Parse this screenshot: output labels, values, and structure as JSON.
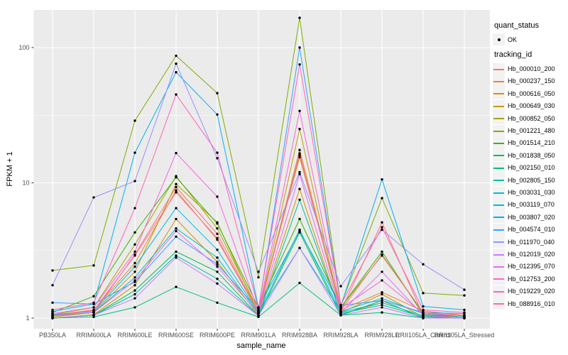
{
  "chart_data": {
    "type": "line",
    "title": "",
    "xlabel": "sample_name",
    "ylabel": "FPKM + 1",
    "y_scale": "log10",
    "y_breaks": [
      1,
      10,
      100
    ],
    "y_minor_breaks": [
      3.162,
      31.62
    ],
    "ylim_log": [
      0.92,
      200
    ],
    "grid": "on",
    "legend_position": "right",
    "categories": [
      "PB350LA",
      "RRIM600LA",
      "RRIM600LE",
      "RRIM600SE",
      "RRIM600PE",
      "RRIM901LA",
      "RRIM928BA",
      "RRIM928LA",
      "RRIM928LE",
      "RRII105LA_Control",
      "RRII105LA_Stressed"
    ],
    "series": [
      {
        "name": "Hb_000010_200",
        "color": "#F8766D",
        "values": [
          1.02,
          1.1,
          2.95,
          9.3,
          4.2,
          1.1,
          16.5,
          1.12,
          5.1,
          1.05,
          1.02
        ]
      },
      {
        "name": "Hb_000237_150",
        "color": "#EA8331",
        "values": [
          1.05,
          1.15,
          2.55,
          8.8,
          3.8,
          1.1,
          17.5,
          1.15,
          1.55,
          1.13,
          1.05
        ]
      },
      {
        "name": "Hb_000616_050",
        "color": "#D89000",
        "values": [
          1.0,
          1.06,
          1.75,
          5.4,
          2.6,
          1.05,
          9.0,
          1.06,
          1.3,
          1.04,
          1.0
        ]
      },
      {
        "name": "Hb_000649_030",
        "color": "#C09B00",
        "values": [
          1.02,
          1.1,
          2.2,
          9.8,
          5.1,
          1.08,
          25.0,
          1.1,
          1.5,
          1.02,
          1.0
        ]
      },
      {
        "name": "Hb_000852_050",
        "color": "#A3A500",
        "values": [
          1.06,
          1.2,
          3.5,
          11.2,
          4.6,
          1.14,
          15.5,
          1.2,
          2.9,
          1.1,
          1.04
        ]
      },
      {
        "name": "Hb_001221_480",
        "color": "#7CAE00",
        "values": [
          2.25,
          2.45,
          28.8,
          87.0,
          46.0,
          2.0,
          166.0,
          1.25,
          7.7,
          1.53,
          1.47
        ]
      },
      {
        "name": "Hb_001514_210",
        "color": "#39B600",
        "values": [
          1.1,
          1.45,
          4.3,
          11.0,
          5.0,
          1.2,
          5.4,
          1.2,
          3.1,
          1.06,
          1.02
        ]
      },
      {
        "name": "Hb_001838_050",
        "color": "#00BB4E",
        "values": [
          1.0,
          1.05,
          1.6,
          3.1,
          2.2,
          1.04,
          4.3,
          1.05,
          1.35,
          1.0,
          1.0
        ]
      },
      {
        "name": "Hb_002150_010",
        "color": "#00BF7D",
        "values": [
          1.0,
          1.02,
          1.2,
          1.7,
          1.3,
          1.02,
          1.82,
          1.05,
          1.1,
          1.0,
          1.0
        ]
      },
      {
        "name": "Hb_002805_150",
        "color": "#00C1A3",
        "values": [
          1.0,
          1.05,
          1.5,
          2.9,
          1.95,
          1.04,
          7.5,
          1.08,
          1.25,
          1.02,
          1.0
        ]
      },
      {
        "name": "Hb_003031_030",
        "color": "#00BFC4",
        "values": [
          1.04,
          1.1,
          2.0,
          4.6,
          2.8,
          1.08,
          4.5,
          1.1,
          1.3,
          1.04,
          1.0
        ]
      },
      {
        "name": "Hb_003119_070",
        "color": "#00BAE0",
        "values": [
          1.06,
          1.12,
          2.4,
          6.5,
          3.2,
          1.1,
          3.3,
          1.12,
          1.4,
          1.08,
          1.02
        ]
      },
      {
        "name": "Hb_003807_020",
        "color": "#00B0F6",
        "values": [
          1.12,
          1.27,
          16.7,
          65.7,
          32.0,
          1.2,
          4.4,
          1.22,
          10.6,
          1.22,
          1.15
        ]
      },
      {
        "name": "Hb_004574_010",
        "color": "#35A2FF",
        "values": [
          1.3,
          1.27,
          1.85,
          4.0,
          2.5,
          1.15,
          100.0,
          1.24,
          1.35,
          1.1,
          1.08
        ]
      },
      {
        "name": "Hb_011970_040",
        "color": "#9590FF",
        "values": [
          1.75,
          7.8,
          10.3,
          76.0,
          15.2,
          2.2,
          12.0,
          1.72,
          4.5,
          2.5,
          1.62
        ]
      },
      {
        "name": "Hb_012019_020",
        "color": "#C77CFF",
        "values": [
          1.0,
          1.05,
          1.4,
          2.8,
          1.8,
          1.04,
          3.3,
          1.05,
          1.2,
          1.0,
          1.0
        ]
      },
      {
        "name": "Hb_012395_070",
        "color": "#E76BF3",
        "values": [
          1.05,
          1.1,
          1.9,
          4.4,
          2.4,
          1.08,
          11.6,
          1.1,
          2.2,
          1.05,
          1.0
        ]
      },
      {
        "name": "Hb_012753_200",
        "color": "#FA62DB",
        "values": [
          1.08,
          1.2,
          3.1,
          16.6,
          7.9,
          1.12,
          34.0,
          1.18,
          1.9,
          1.08,
          1.04
        ]
      },
      {
        "name": "Hb_019229_020",
        "color": "#FF62BC",
        "values": [
          1.15,
          1.3,
          6.5,
          45.0,
          16.7,
          1.18,
          75.0,
          1.25,
          4.7,
          1.15,
          1.1
        ]
      },
      {
        "name": "Hb_088916_010",
        "color": "#FF6A98",
        "values": [
          1.04,
          1.14,
          2.9,
          8.5,
          3.9,
          1.1,
          16.0,
          1.14,
          2.95,
          1.1,
          1.04
        ]
      }
    ]
  },
  "legend": {
    "quant_title": "quant_status",
    "quant_items": [
      {
        "label": "OK",
        "marker": "point-icon",
        "color": "#000000"
      }
    ],
    "tracking_title": "tracking_id"
  },
  "colors": {
    "panel_bg": "#EBEBEB",
    "grid_major": "#FFFFFF",
    "grid_minor": "#FFFFFF",
    "tick_label": "#4D4D4D",
    "tick_mark": "#333333",
    "marker": "#000000",
    "legend_key_bg": "#F2F2F2"
  }
}
